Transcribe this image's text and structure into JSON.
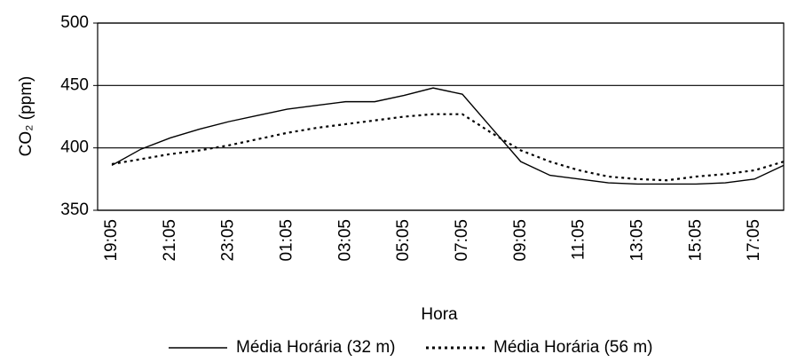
{
  "chart_data": {
    "type": "line",
    "x_label": "Hora",
    "y_label": "CO₂ (ppm)",
    "categories": [
      "19:05",
      null,
      "21:05",
      null,
      "23:05",
      null,
      "01:05",
      null,
      "03:05",
      null,
      "05:05",
      null,
      "07:05",
      null,
      "09:05",
      null,
      "11:05",
      null,
      "13:05",
      null,
      "15:05",
      null,
      "17:05",
      null
    ],
    "series": [
      {
        "name": "Média Horária (32 m)",
        "color": "#000000",
        "dash": "solid",
        "values": [
          386,
          399,
          408,
          415,
          421,
          426,
          431,
          434,
          437,
          437,
          442,
          448,
          443,
          416,
          389,
          378,
          375,
          372,
          371,
          371,
          371,
          372,
          375,
          386
        ]
      },
      {
        "name": "Média Horária (56 m)",
        "color": "#000000",
        "dash": "dotted",
        "values": [
          387,
          391,
          395,
          398,
          402,
          407,
          412,
          416,
          419,
          422,
          425,
          427,
          427,
          412,
          398,
          389,
          382,
          377,
          375,
          374,
          377,
          379,
          382,
          389
        ]
      }
    ],
    "ylim": [
      350,
      500
    ],
    "yticks": [
      350,
      400,
      450,
      500
    ],
    "grid": true,
    "legend": "bottom"
  }
}
